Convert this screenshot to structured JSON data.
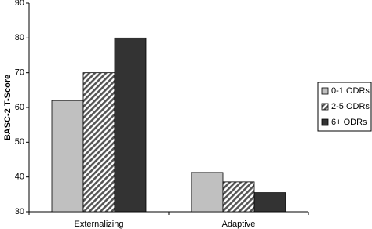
{
  "chart_data": {
    "type": "bar",
    "y_label": "BASC-2 T-Score",
    "categories": [
      "Externalizing",
      "Adaptive"
    ],
    "series": [
      {
        "name": "0-1 ODRs",
        "color": "#c0c0c0",
        "values": [
          62,
          41.3
        ]
      },
      {
        "name": "2-5 ODRs",
        "color": "#808080",
        "pattern": "diagonal",
        "values": [
          70,
          38.6
        ]
      },
      {
        "name": "6+ ODRs",
        "color": "#333333",
        "values": [
          80,
          35.5
        ]
      }
    ],
    "ylim": [
      30,
      90
    ],
    "yticks": [
      30,
      40,
      50,
      60,
      70,
      80,
      90
    ],
    "legend": "right"
  }
}
